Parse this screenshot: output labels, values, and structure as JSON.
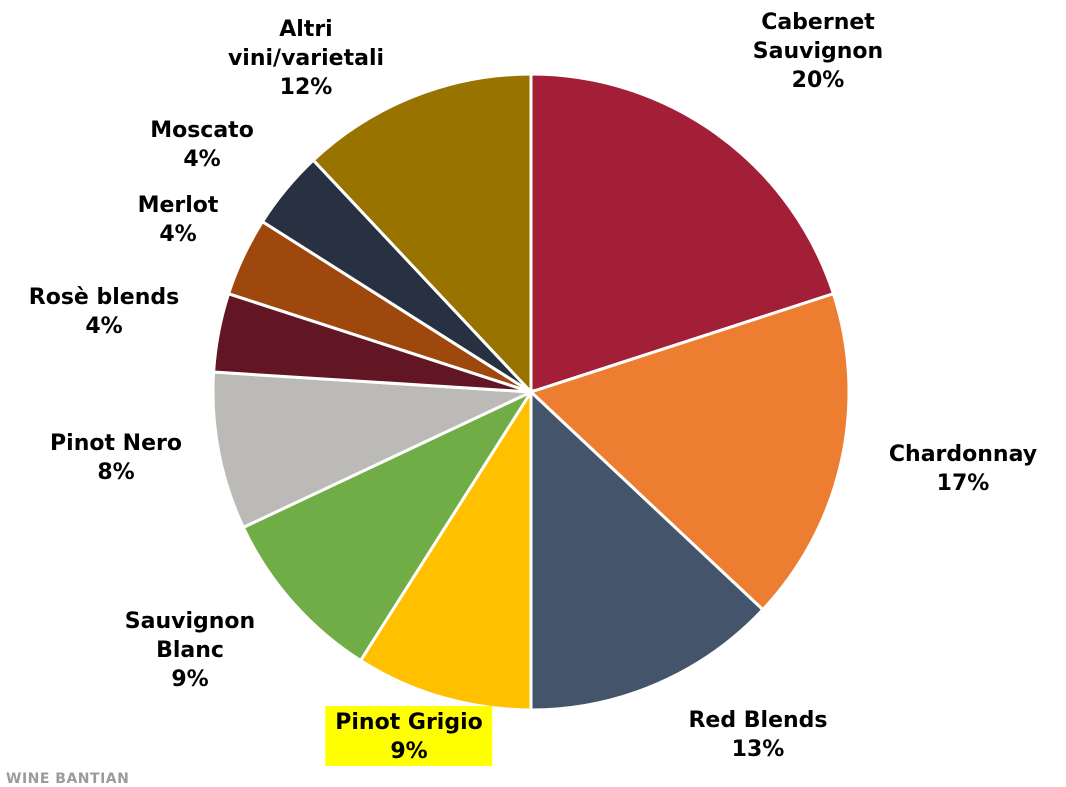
{
  "chart_data": {
    "type": "pie",
    "title": "",
    "start_angle_deg": 0,
    "direction": "clockwise",
    "slices": [
      {
        "name": "Cabernet Sauvignon",
        "label_lines": [
          "Cabernet",
          "Sauvignon"
        ],
        "pct_label": "20%",
        "value": 20,
        "color": "#a31f37"
      },
      {
        "name": "Chardonnay",
        "label_lines": [
          "Chardonnay"
        ],
        "pct_label": "17%",
        "value": 17,
        "color": "#ed7d31"
      },
      {
        "name": "Red Blends",
        "label_lines": [
          "Red Blends"
        ],
        "pct_label": "13%",
        "value": 13,
        "color": "#44546a"
      },
      {
        "name": "Pinot Grigio",
        "label_lines": [
          "Pinot Grigio"
        ],
        "pct_label": "9%",
        "value": 9,
        "color": "#ffc000",
        "highlight": "#ffff00"
      },
      {
        "name": "Sauvignon Blanc",
        "label_lines": [
          "Sauvignon",
          "Blanc"
        ],
        "pct_label": "9%",
        "value": 9,
        "color": "#70ad47"
      },
      {
        "name": "Pinot Nero",
        "label_lines": [
          "Pinot Nero"
        ],
        "pct_label": "8%",
        "value": 8,
        "color": "#bcbab6"
      },
      {
        "name": "Rosè blends",
        "label_lines": [
          "Rosè blends"
        ],
        "pct_label": "4%",
        "value": 4,
        "color": "#621522"
      },
      {
        "name": "Merlot",
        "label_lines": [
          "Merlot"
        ],
        "pct_label": "4%",
        "value": 4,
        "color": "#9e480e"
      },
      {
        "name": "Moscato",
        "label_lines": [
          "Moscato"
        ],
        "pct_label": "4%",
        "value": 4,
        "color": "#283142"
      },
      {
        "name": "Altri vini/varietali",
        "label_lines": [
          "Altri",
          "vini/varietali"
        ],
        "pct_label": "12%",
        "value": 12,
        "color": "#997300"
      }
    ]
  },
  "cut_text": "WINE BANTIAN"
}
